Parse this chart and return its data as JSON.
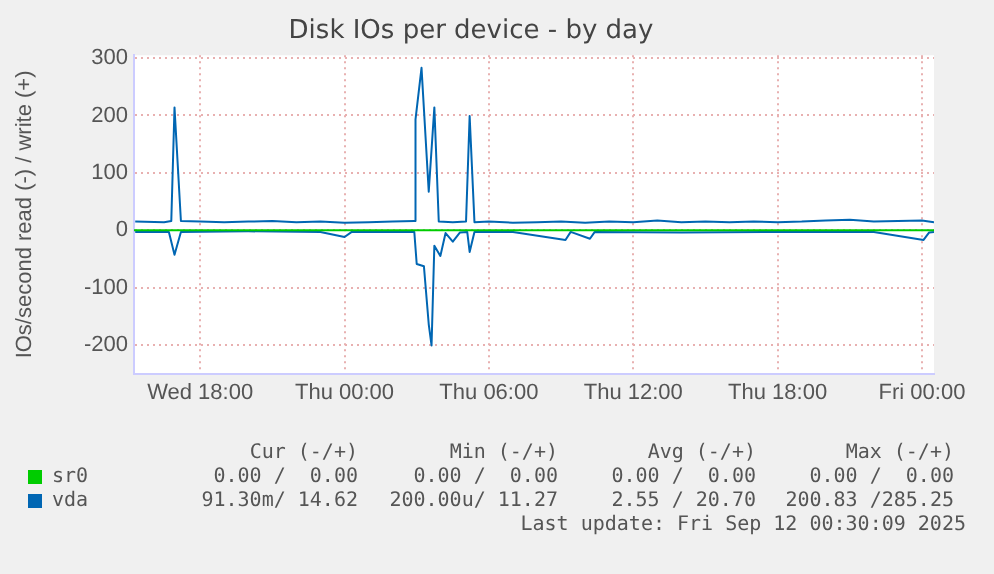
{
  "chart_data": {
    "type": "line",
    "title": "Disk IOs per device - by day",
    "ylabel": "IOs/second read (-) / write (+)",
    "xlim": [
      "2025-09-10T15:15",
      "2025-09-12T00:30"
    ],
    "xticks": [
      {
        "value": "2025-09-10T18:00",
        "label": "Wed 18:00"
      },
      {
        "value": "2025-09-11T00:00",
        "label": "Thu 00:00"
      },
      {
        "value": "2025-09-11T06:00",
        "label": "Thu 06:00"
      },
      {
        "value": "2025-09-11T12:00",
        "label": "Thu 12:00"
      },
      {
        "value": "2025-09-11T18:00",
        "label": "Thu 18:00"
      },
      {
        "value": "2025-09-12T00:00",
        "label": "Fri 00:00"
      }
    ],
    "ylim": [
      -250,
      305
    ],
    "yticks": [
      -200,
      -100,
      0,
      100,
      200,
      300
    ],
    "grid": true,
    "legend": "bottom",
    "marker": "none",
    "line_style": "solid",
    "series": [
      {
        "name": "sr0",
        "color": "#00cc00",
        "x": [
          "2025-09-10T15:15",
          "2025-09-12T00:30"
        ],
        "values": [
          0,
          0
        ]
      },
      {
        "name": "vda",
        "color": "#0066b3",
        "x": [
          "2025-09-10T15:18",
          "2025-09-10T16:30",
          "2025-09-10T16:48",
          "2025-09-10T16:56",
          "2025-09-10T17:12",
          "2025-09-10T18:00",
          "2025-09-10T19:00",
          "2025-09-10T20:00",
          "2025-09-10T21:00",
          "2025-09-10T22:00",
          "2025-09-10T23:00",
          "2025-09-11T00:00",
          "2025-09-11T01:00",
          "2025-09-11T02:00",
          "2025-09-11T02:54",
          "2025-09-11T02:57",
          "2025-09-11T03:12",
          "2025-09-11T03:30",
          "2025-09-11T03:44",
          "2025-09-11T03:55",
          "2025-09-11T04:30",
          "2025-09-11T05:03",
          "2025-09-11T05:12",
          "2025-09-11T05:24",
          "2025-09-11T06:00",
          "2025-09-11T07:00",
          "2025-09-11T08:00",
          "2025-09-11T09:00",
          "2025-09-11T10:00",
          "2025-09-11T11:00",
          "2025-09-11T12:00",
          "2025-09-11T13:00",
          "2025-09-11T14:00",
          "2025-09-11T15:00",
          "2025-09-11T16:00",
          "2025-09-11T17:00",
          "2025-09-11T18:00",
          "2025-09-11T19:00",
          "2025-09-11T20:00",
          "2025-09-11T21:00",
          "2025-09-11T22:00",
          "2025-09-11T23:00",
          "2025-09-12T00:00",
          "2025-09-12T00:30"
        ],
        "values": [
          15,
          14,
          16,
          214,
          16,
          15,
          14,
          15,
          16,
          14,
          15,
          13,
          14,
          15,
          16,
          193,
          283,
          67,
          214,
          15,
          14,
          15,
          199,
          14,
          15,
          13,
          14,
          15,
          13,
          15,
          14,
          17,
          14,
          15,
          14,
          15,
          14,
          15,
          17,
          18,
          15,
          16,
          17,
          14
        ]
      },
      {
        "color": "#0066b3",
        "x": [
          "2025-09-10T15:18",
          "2025-09-10T16:42",
          "2025-09-10T16:56",
          "2025-09-10T17:12",
          "2025-09-10T20:00",
          "2025-09-10T23:00",
          "2025-09-11T00:00",
          "2025-09-11T00:18",
          "2025-09-11T02:54",
          "2025-09-11T03:00",
          "2025-09-11T03:18",
          "2025-09-11T03:30",
          "2025-09-11T03:37",
          "2025-09-11T03:44",
          "2025-09-11T03:59",
          "2025-09-11T04:12",
          "2025-09-11T04:30",
          "2025-09-11T04:48",
          "2025-09-11T05:06",
          "2025-09-11T05:12",
          "2025-09-11T05:24",
          "2025-09-11T07:00",
          "2025-09-11T09:11",
          "2025-09-11T09:24",
          "2025-09-11T10:12",
          "2025-09-11T10:24",
          "2025-09-11T14:00",
          "2025-09-11T18:00",
          "2025-09-11T22:00",
          "2025-09-12T00:04",
          "2025-09-12T00:18",
          "2025-09-12T00:30"
        ],
        "values": [
          -3,
          -3,
          -43,
          -3,
          -2,
          -3,
          -12,
          -3,
          -3,
          -59,
          -63,
          -164,
          -201,
          -27,
          -45,
          -5,
          -20,
          -4,
          -3,
          -38,
          -3,
          -3,
          -17,
          -3,
          -15,
          -3,
          -4,
          -3,
          -3,
          -17,
          -4,
          -3
        ]
      }
    ],
    "annotations": [
      "Cur (-/+)",
      "Min (-/+)",
      "Avg (-/+)",
      "Max (-/+)",
      "0.00 /  0.00",
      "0.00 /  0.00",
      "0.00 /  0.00",
      "0.00 /  0.00",
      "91.30m/ 14.62",
      "200.00u/ 11.27",
      "2.55 / 20.70",
      "200.83 /285.25",
      "Last update: Fri Sep 12 00:30:09 2025"
    ]
  }
}
